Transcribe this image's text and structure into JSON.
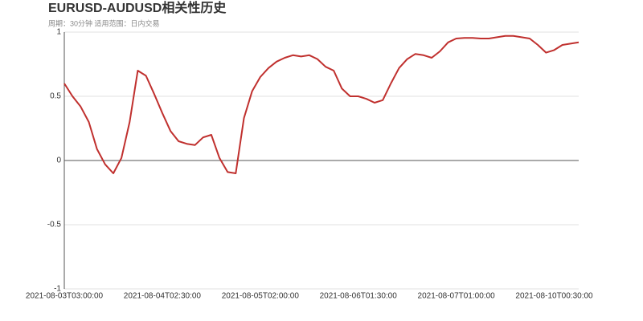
{
  "chart_data": {
    "type": "line",
    "title": "EURUSD-AUDUSD相关性历史",
    "subtitle": "周期：30分钟 适用范围：日内交易",
    "categories": [
      "2021-08-03T03:00:00",
      null,
      null,
      null,
      null,
      null,
      null,
      null,
      null,
      null,
      null,
      null,
      "2021-08-04T02:30:00",
      null,
      null,
      null,
      null,
      null,
      null,
      null,
      null,
      null,
      null,
      null,
      "2021-08-05T02:00:00",
      null,
      null,
      null,
      null,
      null,
      null,
      null,
      null,
      null,
      null,
      null,
      "2021-08-06T01:30:00",
      null,
      null,
      null,
      null,
      null,
      null,
      null,
      null,
      null,
      null,
      null,
      "2021-08-07T01:00:00",
      null,
      null,
      null,
      null,
      null,
      null,
      null,
      null,
      null,
      null,
      null,
      "2021-08-10T00:30:00",
      null,
      null,
      null
    ],
    "series": [
      {
        "name": "EURUSD-AUDUSD",
        "color": "#c0302e",
        "values": [
          0.6,
          0.5,
          0.42,
          0.3,
          0.09,
          -0.03,
          -0.1,
          0.02,
          0.3,
          0.7,
          0.66,
          0.52,
          0.37,
          0.23,
          0.15,
          0.13,
          0.12,
          0.18,
          0.2,
          0.02,
          -0.09,
          -0.1,
          0.33,
          0.54,
          0.65,
          0.72,
          0.77,
          0.8,
          0.82,
          0.81,
          0.82,
          0.79,
          0.73,
          0.7,
          0.56,
          0.5,
          0.5,
          0.48,
          0.45,
          0.47,
          0.6,
          0.72,
          0.79,
          0.83,
          0.82,
          0.8,
          0.85,
          0.92,
          0.95,
          0.955,
          0.955,
          0.95,
          0.95,
          0.96,
          0.97,
          0.97,
          0.96,
          0.95,
          0.9,
          0.84,
          0.86,
          0.9,
          0.91,
          0.92
        ]
      }
    ],
    "ylim": [
      -1,
      1
    ],
    "yticks": [
      -1,
      -0.5,
      0,
      0.5,
      1
    ],
    "grid": true
  }
}
